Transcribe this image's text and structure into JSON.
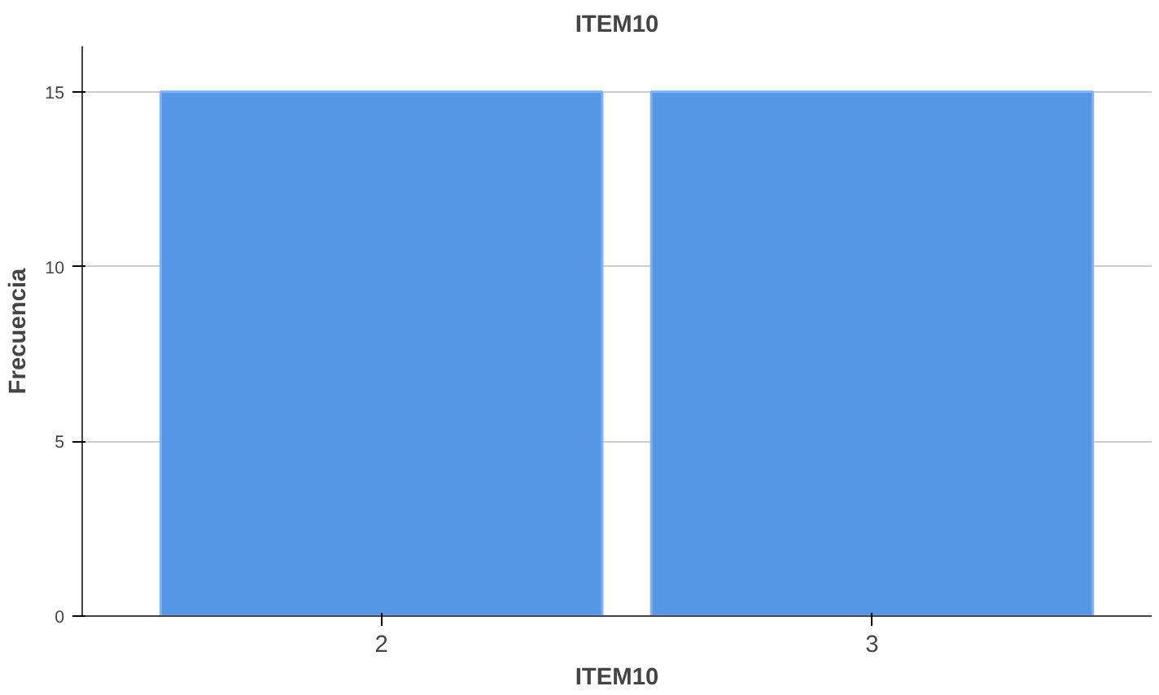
{
  "chart_data": {
    "type": "bar",
    "title": "ITEM10",
    "xlabel": "ITEM10",
    "ylabel": "Frecuencia",
    "categories": [
      "2",
      "3"
    ],
    "values": [
      15,
      15
    ],
    "color": "#5596e6",
    "ylim": [
      0,
      16.3
    ],
    "yticks": [
      0,
      5,
      10,
      15
    ],
    "grid": "y"
  }
}
